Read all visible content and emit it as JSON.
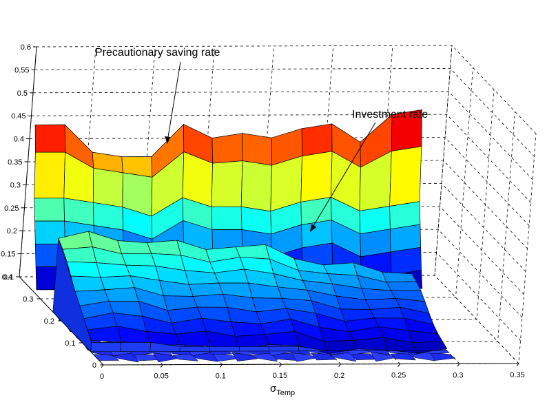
{
  "chart_data": {
    "type": "surface",
    "title": "",
    "xlabel": "σ",
    "xlabel_subscript": "Temp",
    "ylabel": "",
    "zlabel": "",
    "xlim": [
      0,
      0.35
    ],
    "ylim": [
      0,
      0.4
    ],
    "zlim": [
      0.1,
      0.6
    ],
    "x_ticks": [
      "0",
      "0.05",
      "0.1",
      "0.15",
      "0.2",
      "0.25",
      "0.3",
      "0.35"
    ],
    "y_ticks": [
      "0",
      "0.1",
      "0.2",
      "0.3",
      "0.4"
    ],
    "z_ticks": [
      "0.1",
      "0.15",
      "0.2",
      "0.25",
      "0.3",
      "0.35",
      "0.4",
      "0.45",
      "0.5",
      "0.55",
      "0.6"
    ],
    "grid": true,
    "colormap": "jet",
    "annotations": [
      {
        "text": "Precautionary saving rate",
        "target": "precautionary_saving_rate"
      },
      {
        "text": "Investment rate",
        "target": "investment_rate"
      }
    ],
    "surfaces": [
      {
        "id": "precautionary_saving_rate",
        "x": [
          0,
          0.025,
          0.05,
          0.075,
          0.1,
          0.125,
          0.15,
          0.175,
          0.2,
          0.225,
          0.25,
          0.275,
          0.3,
          0.325
        ],
        "top_profile": [
          0.44,
          0.44,
          0.38,
          0.37,
          0.37,
          0.44,
          0.41,
          0.42,
          0.41,
          0.43,
          0.44,
          0.4,
          0.46,
          0.47
        ],
        "level_profile": [
          0.29,
          0.29,
          0.28,
          0.27,
          0.25,
          0.29,
          0.27,
          0.27,
          0.26,
          0.28,
          0.29,
          0.26,
          0.27,
          0.28
        ]
      },
      {
        "id": "investment_rate",
        "x": [
          0,
          0.025,
          0.05,
          0.075,
          0.1,
          0.125,
          0.15,
          0.175,
          0.2,
          0.225,
          0.25,
          0.275,
          0.3
        ],
        "back_profile": [
          0.26,
          0.27,
          0.26,
          0.25,
          0.25,
          0.24,
          0.24,
          0.24,
          0.22,
          0.2,
          0.2,
          0.19,
          0.18
        ],
        "front_profile": [
          0.12,
          0.12,
          0.12,
          0.11,
          0.11,
          0.11,
          0.11,
          0.11,
          0.1,
          0.1,
          0.1,
          0.1,
          0.1
        ]
      },
      {
        "id": "floor_surface",
        "level": 0.1
      }
    ]
  }
}
